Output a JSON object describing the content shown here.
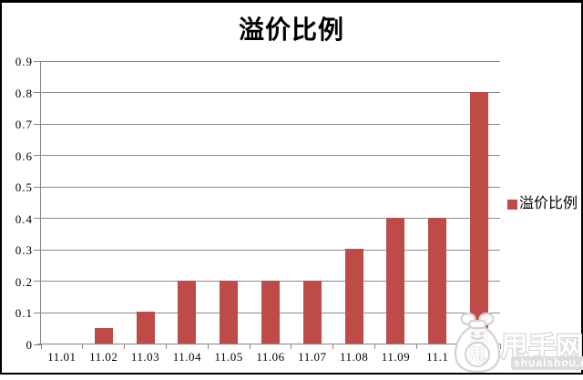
{
  "chart_data": {
    "type": "bar",
    "title": "溢价比例",
    "categories": [
      "11.01",
      "11.02",
      "11.03",
      "11.04",
      "11.05",
      "11.06",
      "11.07",
      "11.08",
      "11.09",
      "11.1",
      ""
    ],
    "series": [
      {
        "name": "溢价比例",
        "values": [
          0,
          0.05,
          0.1,
          0.2,
          0.2,
          0.2,
          0.2,
          0.3,
          0.4,
          0.4,
          0.8
        ]
      }
    ],
    "xlabel": "",
    "ylabel": "",
    "ylim": [
      0,
      0.9
    ],
    "ytick_values": [
      0,
      0.1,
      0.2,
      0.3,
      0.4,
      0.5,
      0.6,
      0.7,
      0.8,
      0.9
    ],
    "grid": "horizontal",
    "legend": {
      "label": "溢价比例",
      "position": "right"
    },
    "bar_color": "#BE4B48",
    "axis_color": "#858585",
    "gridline_color": "#8a8a8a"
  },
  "watermark": {
    "brand": "甩手网",
    "domain": "shuaishou.com",
    "mascot": "money-bag-mascot",
    "mascot_char": "甩",
    "color": "#d4d4d4"
  }
}
